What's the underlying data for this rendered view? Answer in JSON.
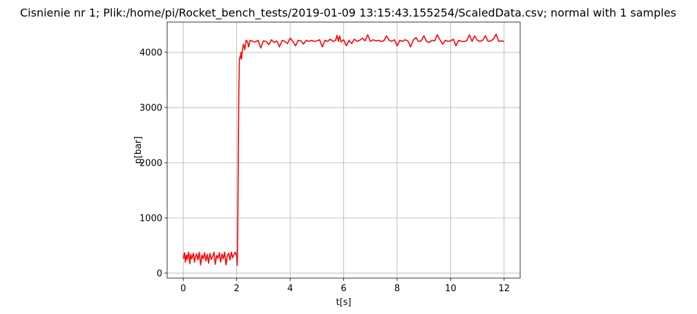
{
  "chart_data": {
    "type": "line",
    "title": "Cisnienie nr 1; Plik:/home/pi/Rocket_bench_tests/2019-01-09 13:15:43.155254/ScaledData.csv; normal with 1 samples",
    "xlabel": "t[s]",
    "ylabel": "p[bar]",
    "xlim": [
      -0.6,
      12.6
    ],
    "ylim": [
      -90,
      4550
    ],
    "xticks": [
      0,
      2,
      4,
      6,
      8,
      10,
      12
    ],
    "yticks": [
      0,
      1000,
      2000,
      3000,
      4000
    ],
    "grid": true,
    "line_color": "#ff0000",
    "series": [
      {
        "x": [
          0,
          0.05,
          0.08,
          0.12,
          0.15,
          0.2,
          0.25,
          0.28,
          0.32,
          0.38,
          0.42,
          0.46,
          0.5,
          0.55,
          0.6,
          0.65,
          0.7,
          0.75,
          0.8,
          0.85,
          0.9,
          0.95,
          1.0,
          1.05,
          1.1,
          1.15,
          1.2,
          1.25,
          1.3,
          1.35,
          1.4,
          1.45,
          1.5,
          1.55,
          1.6,
          1.65,
          1.7,
          1.75,
          1.8,
          1.85,
          1.9,
          1.95,
          2.0,
          2.02,
          2.04,
          2.06,
          2.08,
          2.1,
          2.12,
          2.14,
          2.16,
          2.18,
          2.2,
          2.25,
          2.3,
          2.35,
          2.4,
          2.45,
          2.5,
          2.6,
          2.7,
          2.8,
          2.9,
          3.0,
          3.1,
          3.2,
          3.3,
          3.4,
          3.5,
          3.6,
          3.7,
          3.8,
          3.9,
          4.0,
          4.1,
          4.2,
          4.3,
          4.4,
          4.5,
          4.6,
          4.7,
          4.8,
          4.9,
          5.0,
          5.1,
          5.2,
          5.3,
          5.4,
          5.5,
          5.6,
          5.7,
          5.75,
          5.8,
          5.85,
          5.9,
          6.0,
          6.1,
          6.2,
          6.3,
          6.4,
          6.5,
          6.6,
          6.7,
          6.8,
          6.9,
          7.0,
          7.1,
          7.2,
          7.3,
          7.4,
          7.5,
          7.6,
          7.7,
          7.8,
          7.9,
          8.0,
          8.1,
          8.2,
          8.3,
          8.4,
          8.5,
          8.6,
          8.7,
          8.8,
          8.9,
          9.0,
          9.1,
          9.2,
          9.3,
          9.4,
          9.5,
          9.6,
          9.7,
          9.8,
          9.9,
          10.0,
          10.1,
          10.2,
          10.3,
          10.4,
          10.5,
          10.6,
          10.7,
          10.8,
          10.9,
          11.0,
          11.1,
          11.2,
          11.3,
          11.4,
          11.5,
          11.6,
          11.7,
          11.8,
          11.9,
          12.0
        ],
        "y": [
          260,
          370,
          200,
          330,
          250,
          380,
          170,
          340,
          260,
          360,
          200,
          300,
          350,
          240,
          380,
          150,
          330,
          260,
          370,
          220,
          340,
          180,
          360,
          250,
          300,
          380,
          160,
          320,
          270,
          370,
          200,
          350,
          260,
          380,
          150,
          310,
          360,
          240,
          380,
          280,
          340,
          380,
          300,
          140,
          800,
          2200,
          3300,
          3850,
          3920,
          3900,
          4000,
          3880,
          3990,
          4150,
          4050,
          4220,
          4200,
          4100,
          4220,
          4200,
          4190,
          4220,
          4080,
          4210,
          4200,
          4140,
          4230,
          4180,
          4210,
          4100,
          4220,
          4200,
          4160,
          4260,
          4200,
          4120,
          4220,
          4210,
          4150,
          4220,
          4200,
          4220,
          4200,
          4210,
          4230,
          4100,
          4220,
          4200,
          4240,
          4200,
          4220,
          4310,
          4200,
          4300,
          4190,
          4230,
          4120,
          4220,
          4160,
          4240,
          4200,
          4220,
          4260,
          4210,
          4320,
          4200,
          4230,
          4210,
          4220,
          4200,
          4210,
          4300,
          4220,
          4200,
          4230,
          4120,
          4220,
          4200,
          4230,
          4210,
          4100,
          4220,
          4270,
          4200,
          4210,
          4300,
          4200,
          4180,
          4220,
          4210,
          4320,
          4230,
          4150,
          4220,
          4200,
          4210,
          4240,
          4120,
          4220,
          4200,
          4200,
          4210,
          4320,
          4200,
          4300,
          4220,
          4200,
          4220,
          4300,
          4200,
          4210,
          4240,
          4330,
          4200,
          4210,
          4200
        ]
      }
    ]
  }
}
